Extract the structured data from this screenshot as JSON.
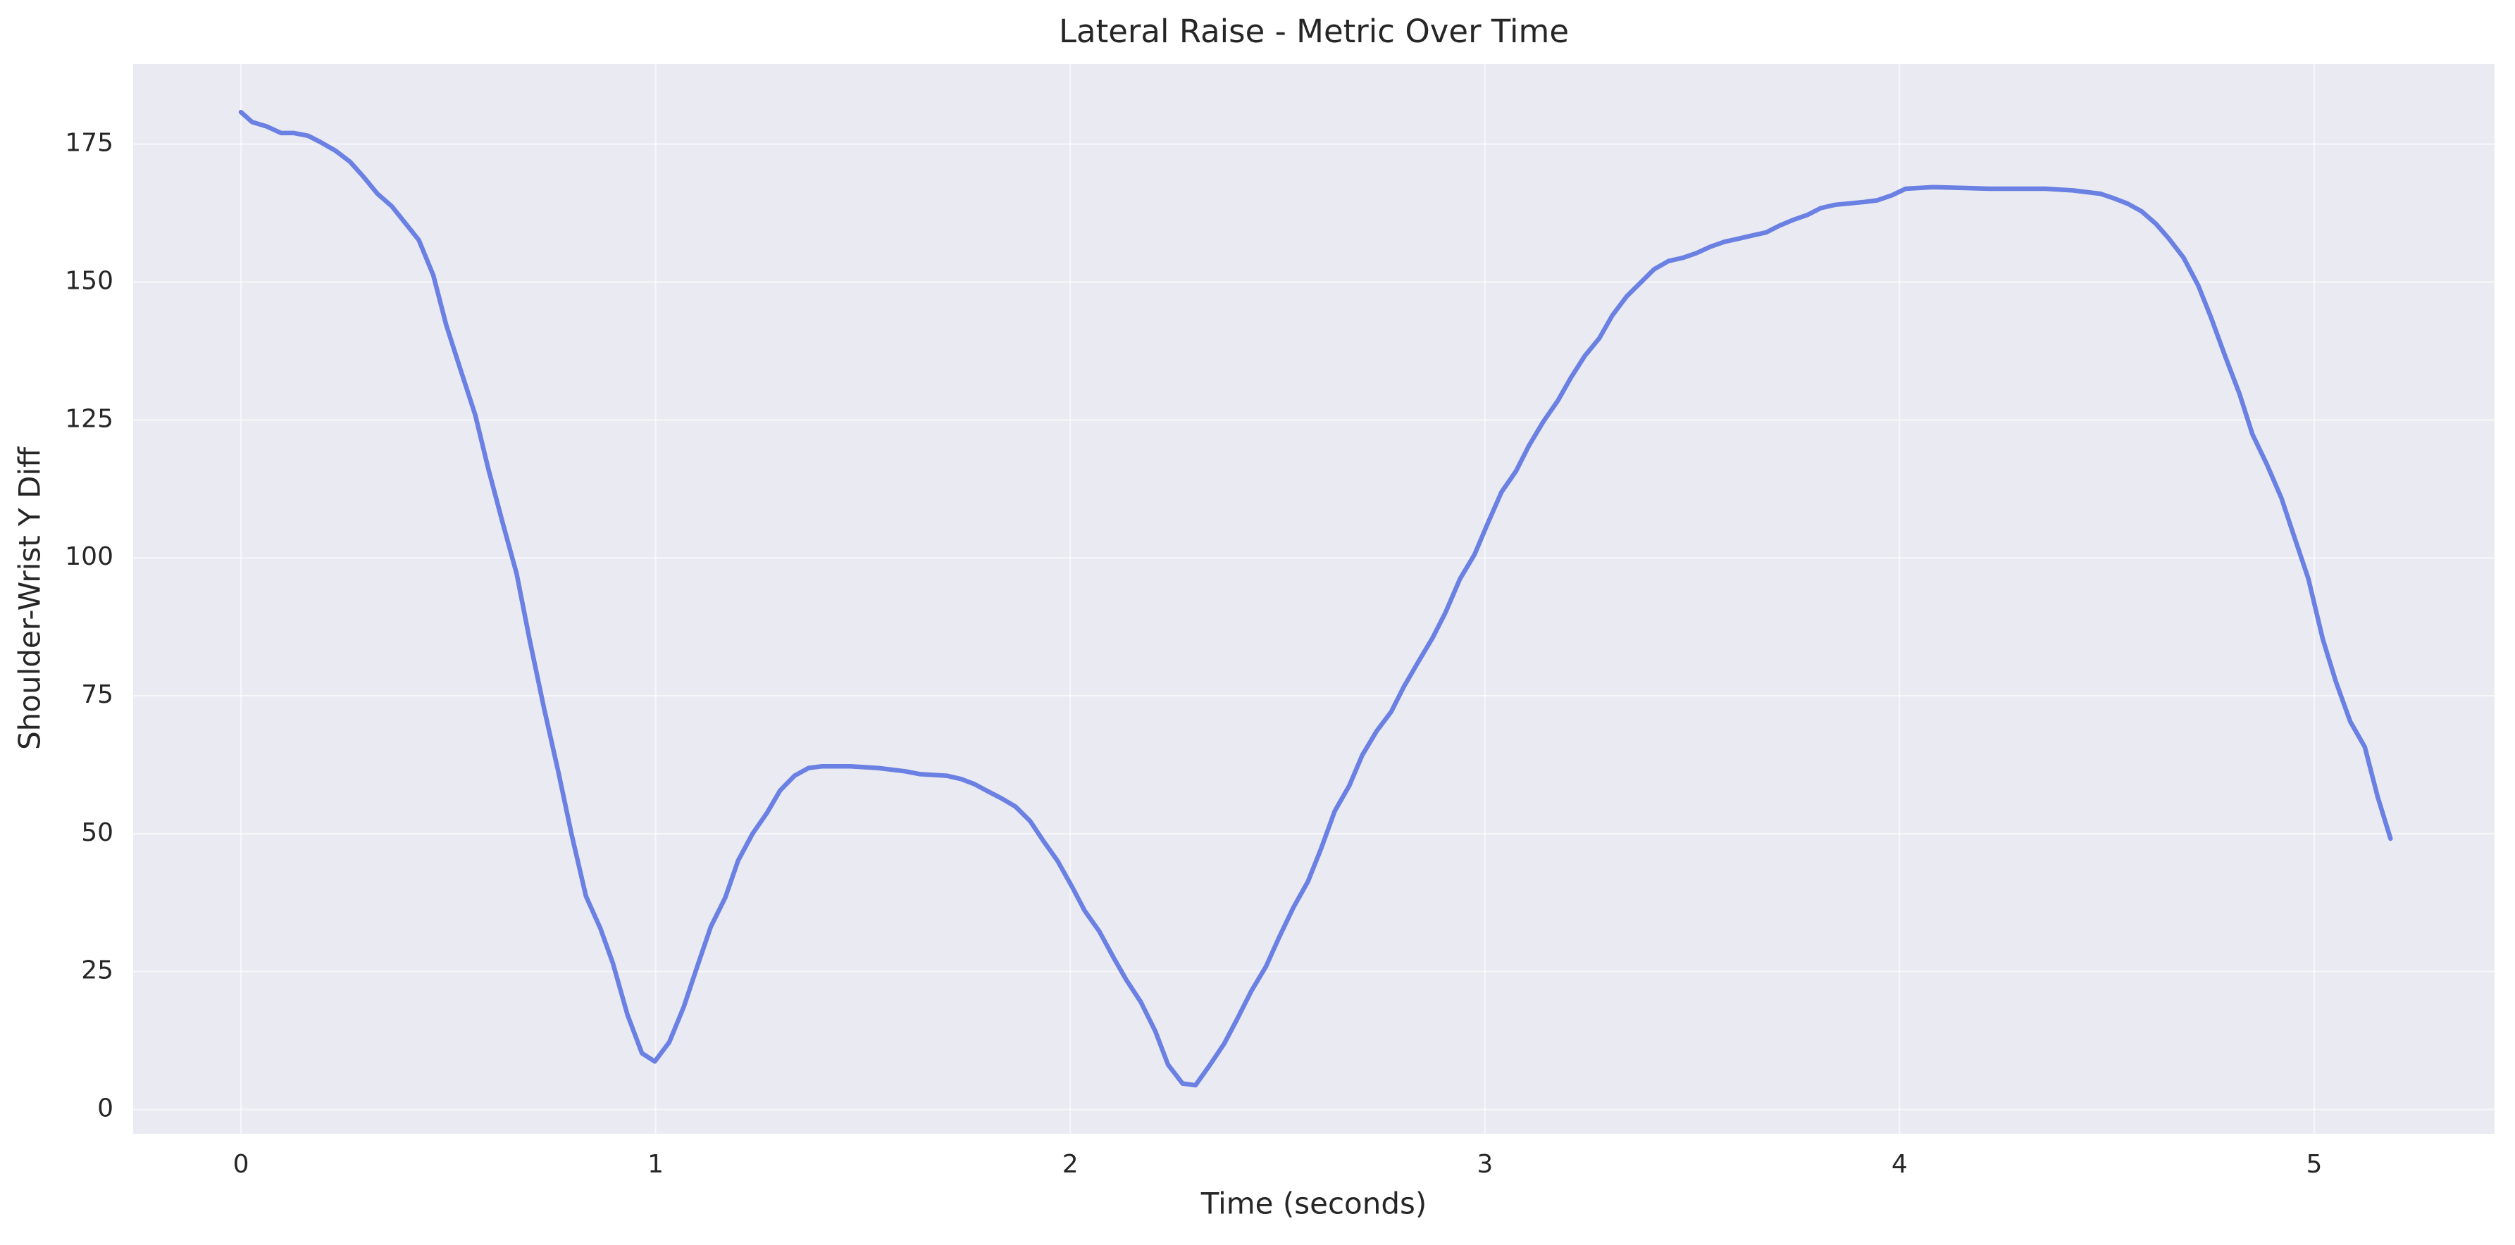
{
  "chart_data": {
    "type": "line",
    "title": "Lateral Raise - Metric Over Time",
    "x_label": "Time (seconds)",
    "y_label": "Shoulder-Wrist Y Diff",
    "x": [
      0,
      0.027,
      0.062,
      0.097,
      0.128,
      0.162,
      0.193,
      0.228,
      0.263,
      0.294,
      0.329,
      0.364,
      0.395,
      0.429,
      0.464,
      0.495,
      0.53,
      0.565,
      0.596,
      0.631,
      0.665,
      0.696,
      0.731,
      0.766,
      0.797,
      0.832,
      0.867,
      0.897,
      0.932,
      0.967,
      0.998,
      1.033,
      1.068,
      1.099,
      1.133,
      1.168,
      1.199,
      1.234,
      1.269,
      1.3,
      1.335,
      1.369,
      1.4,
      1.47,
      1.536,
      1.602,
      1.636,
      1.702,
      1.737,
      1.768,
      1.803,
      1.834,
      1.868,
      1.903,
      1.934,
      1.969,
      2.004,
      2.035,
      2.07,
      2.104,
      2.135,
      2.17,
      2.205,
      2.236,
      2.271,
      2.302,
      2.337,
      2.371,
      2.402,
      2.437,
      2.472,
      2.503,
      2.538,
      2.573,
      2.604,
      2.638,
      2.673,
      2.704,
      2.739,
      2.774,
      2.805,
      2.839,
      2.874,
      2.905,
      2.94,
      2.975,
      3.006,
      3.04,
      3.075,
      3.106,
      3.141,
      3.176,
      3.207,
      3.241,
      3.276,
      3.307,
      3.342,
      3.377,
      3.408,
      3.443,
      3.478,
      3.509,
      3.544,
      3.578,
      3.609,
      3.644,
      3.679,
      3.71,
      3.745,
      3.779,
      3.81,
      3.845,
      3.915,
      3.946,
      3.981,
      4.015,
      4.081,
      4.217,
      4.352,
      4.418,
      4.484,
      4.519,
      4.55,
      4.584,
      4.619,
      4.65,
      4.685,
      4.72,
      4.751,
      4.785,
      4.82,
      4.851,
      4.886,
      4.921,
      4.952,
      4.986,
      5.021,
      5.052,
      5.087,
      5.122,
      5.153,
      5.184
    ],
    "values": [
      180.8,
      179,
      178.2,
      177,
      177,
      176.5,
      175.3,
      173.8,
      171.8,
      169.2,
      166,
      163.7,
      160.8,
      157.6,
      151.2,
      142.2,
      134,
      125.9,
      116.3,
      106.4,
      97.1,
      85.2,
      72.7,
      61,
      50,
      38.7,
      32.8,
      26.5,
      17.2,
      10.2,
      8.7,
      12.2,
      18.6,
      25.6,
      33.1,
      38.4,
      45.1,
      50,
      53.8,
      57.8,
      60.5,
      61.9,
      62.2,
      62.2,
      61.9,
      61.3,
      60.8,
      60.5,
      59.9,
      59,
      57.6,
      56.4,
      54.9,
      52.3,
      48.8,
      45.1,
      40.4,
      36,
      32.3,
      27.6,
      23.5,
      19.5,
      14.2,
      8.1,
      4.7,
      4.4,
      8.1,
      11.9,
      16.3,
      21.5,
      25.9,
      31.1,
      36.6,
      41.3,
      47.1,
      54.1,
      58.7,
      64.2,
      68.6,
      72.1,
      76.7,
      81.1,
      85.5,
      90.1,
      96.2,
      100.6,
      106.1,
      111.9,
      115.7,
      120.3,
      124.7,
      128.5,
      132.6,
      136.6,
      139.8,
      143.9,
      147.4,
      150,
      152.3,
      153.8,
      154.4,
      155.2,
      156.4,
      157.3,
      157.8,
      158.4,
      159,
      160.2,
      161.3,
      162.2,
      163.4,
      164,
      164.5,
      164.8,
      165.7,
      166.9,
      167.2,
      166.9,
      166.9,
      166.6,
      166,
      165.1,
      164.2,
      162.8,
      160.5,
      157.8,
      154.4,
      149.4,
      143.6,
      136.6,
      129.7,
      122.4,
      116.9,
      110.8,
      103.8,
      96.2,
      85.2,
      77.6,
      70.3,
      65.7,
      56.7,
      49.1
    ],
    "color": "#6a80e2",
    "xlim": [
      -0.26,
      5.435
    ],
    "ylim": [
      -4.4,
      189.5
    ],
    "xticks": [
      0,
      1,
      2,
      3,
      4,
      5
    ],
    "yticks": [
      0,
      25,
      50,
      75,
      100,
      125,
      150,
      175
    ],
    "grid": true
  }
}
